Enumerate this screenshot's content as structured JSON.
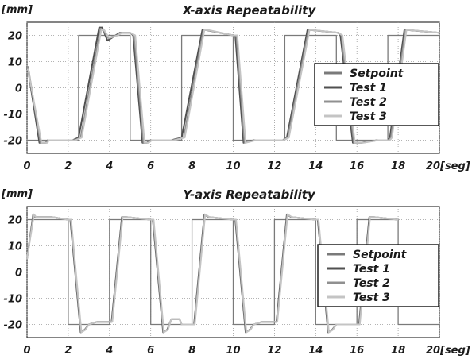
{
  "chart_data": [
    {
      "type": "line",
      "title": "X-axis Repeatability",
      "ylabel": "[mm]",
      "xlabel": "[seg]",
      "xlim": [
        0,
        20
      ],
      "ylim": [
        -25,
        25
      ],
      "xticks": [
        0,
        2,
        4,
        6,
        8,
        10,
        12,
        14,
        16,
        18,
        20
      ],
      "xtick_labels": [
        "0",
        "2",
        "4",
        "6",
        "8",
        "10",
        "12",
        "14",
        "16",
        "18",
        "20"
      ],
      "xunit_label": "[seg]",
      "yticks": [
        20,
        10,
        0,
        -10,
        -20
      ],
      "grid": true,
      "legend_position": "center-right",
      "series": [
        {
          "name": "Setpoint",
          "color": "#7a7a7a",
          "x": [
            0,
            2.5,
            2.5,
            5,
            5,
            7.5,
            7.5,
            10,
            10,
            12.5,
            12.5,
            15,
            15,
            17.5,
            17.5,
            20
          ],
          "y": [
            -20,
            -20,
            20,
            20,
            -20,
            -20,
            20,
            20,
            -20,
            -20,
            20,
            20,
            -20,
            -20,
            20,
            20
          ]
        },
        {
          "name": "Test 1",
          "color": "#505050",
          "x": [
            0,
            0.05,
            0.6,
            0.9,
            1.0,
            2.2,
            2.5,
            3.5,
            3.65,
            3.8,
            3.9,
            4.3,
            4.5,
            5.0,
            5.15,
            5.6,
            5.8,
            6.0,
            7.0,
            7.5,
            8.5,
            8.7,
            10.0,
            10.1,
            10.5,
            11.0,
            12.4,
            12.6,
            13.6,
            13.8,
            15.1,
            15.2,
            15.8,
            16.2,
            17.0,
            17.5,
            17.6,
            18.3,
            18.5,
            20.0
          ],
          "y": [
            7,
            7,
            -21,
            -21,
            -20,
            -20,
            -19,
            23,
            23,
            20,
            18,
            20,
            21,
            21,
            20,
            -21,
            -21,
            -20,
            -20,
            -19,
            22,
            22,
            20,
            20,
            -21,
            -20,
            -20,
            -19,
            22,
            22,
            21,
            20,
            -21,
            -21,
            -20,
            -20,
            -19,
            22,
            22,
            21
          ]
        },
        {
          "name": "Test 2",
          "color": "#909090",
          "x": [
            0,
            0.05,
            0.65,
            0.95,
            1.0,
            2.3,
            2.6,
            3.55,
            3.7,
            3.85,
            3.95,
            4.35,
            4.55,
            5.0,
            5.2,
            5.65,
            5.85,
            6.0,
            7.1,
            7.6,
            8.55,
            8.75,
            10.0,
            10.15,
            10.55,
            11.05,
            12.4,
            12.65,
            13.65,
            13.85,
            15.1,
            15.25,
            15.85,
            16.25,
            17.0,
            17.55,
            17.65,
            18.35,
            18.55,
            20.0
          ],
          "y": [
            8,
            8,
            -21,
            -21,
            -20,
            -20,
            -19,
            22,
            22,
            20,
            19,
            20,
            21,
            21,
            20,
            -21,
            -21,
            -20,
            -20,
            -19,
            22,
            22,
            20,
            20,
            -21,
            -20,
            -20,
            -19,
            22,
            22,
            21,
            20,
            -21,
            -21,
            -20,
            -20,
            -19,
            22,
            22,
            21
          ]
        },
        {
          "name": "Test 3",
          "color": "#c4c4c4",
          "x": [
            0,
            0.05,
            0.7,
            1.0,
            1.05,
            2.35,
            2.65,
            3.6,
            3.75,
            3.9,
            4.0,
            4.4,
            4.6,
            5.0,
            5.25,
            5.7,
            5.9,
            6.05,
            7.15,
            7.65,
            8.6,
            8.8,
            10.0,
            10.2,
            10.6,
            11.1,
            12.45,
            12.7,
            13.7,
            13.9,
            15.1,
            15.3,
            15.9,
            16.3,
            17.05,
            17.6,
            17.7,
            18.4,
            18.6,
            20.0
          ],
          "y": [
            7,
            7,
            -21,
            -21,
            -20,
            -20,
            -19,
            22,
            22,
            20,
            19,
            20,
            21,
            21,
            20,
            -21,
            -21,
            -20,
            -20,
            -19,
            22,
            22,
            20,
            20,
            -21,
            -20,
            -20,
            -19,
            22,
            22,
            21,
            20,
            -21,
            -21,
            -20,
            -20,
            -19,
            22,
            22,
            21
          ]
        }
      ]
    },
    {
      "type": "line",
      "title": "Y-axis Repeatability",
      "ylabel": "[mm]",
      "xlabel": "[seg]",
      "xlim": [
        0,
        20
      ],
      "ylim": [
        -25,
        25
      ],
      "xticks": [
        0,
        2,
        4,
        6,
        8,
        10,
        12,
        14,
        16,
        18,
        20
      ],
      "xtick_labels": [
        "0",
        "2",
        "4",
        "6",
        "8",
        "10",
        "12",
        "14",
        "16",
        "18",
        "20"
      ],
      "xunit_label": "[seg]",
      "yticks": [
        20,
        10,
        0,
        -10,
        -20
      ],
      "grid": true,
      "legend_position": "center-right",
      "series": [
        {
          "name": "Setpoint",
          "color": "#7a7a7a",
          "x": [
            0,
            2,
            2,
            4,
            4,
            6,
            6,
            8,
            8,
            10,
            10,
            12,
            12,
            14,
            14,
            16,
            16,
            18,
            18,
            20
          ],
          "y": [
            20,
            20,
            -20,
            -20,
            20,
            20,
            -20,
            -20,
            20,
            20,
            -20,
            -20,
            20,
            20,
            -20,
            -20,
            20,
            20,
            -20,
            -20
          ]
        },
        {
          "name": "Test 1",
          "color": "#505050",
          "x": [
            0,
            0.3,
            0.4,
            1.2,
            2.0,
            2.1,
            2.6,
            2.8,
            3.0,
            3.4,
            3.5,
            4.0,
            4.1,
            4.6,
            4.8,
            6.0,
            6.1,
            6.6,
            6.8,
            7.0,
            7.4,
            7.5,
            8.0,
            8.1,
            8.6,
            8.8,
            10.0,
            10.1,
            10.6,
            10.8,
            11.0,
            11.4,
            11.5,
            12.0,
            12.1,
            12.6,
            12.8,
            14.0,
            14.1,
            14.6,
            14.8,
            15.0,
            15.4,
            15.5,
            16.0,
            16.1,
            16.6,
            16.8,
            18.0
          ],
          "y": [
            5,
            22,
            21,
            21,
            20,
            20,
            -23,
            -22,
            -20,
            -19,
            -19,
            -19,
            -19,
            21,
            21,
            20,
            20,
            -23,
            -22,
            -18,
            -18,
            -20,
            -20,
            -20,
            22,
            21,
            20,
            20,
            -23,
            -22,
            -20,
            -19,
            -19,
            -19,
            -19,
            22,
            21,
            20,
            20,
            -23,
            -22,
            -20,
            -20,
            -20,
            -20,
            -20,
            21,
            21,
            20
          ]
        },
        {
          "name": "Test 2",
          "color": "#909090",
          "x": [
            0,
            0.32,
            0.42,
            1.2,
            2.0,
            2.12,
            2.62,
            2.82,
            3.0,
            3.4,
            3.5,
            4.0,
            4.12,
            4.62,
            4.82,
            6.0,
            6.12,
            6.62,
            6.82,
            7.0,
            7.4,
            7.5,
            8.0,
            8.12,
            8.62,
            8.82,
            10.0,
            10.12,
            10.62,
            10.82,
            11.0,
            11.4,
            11.5,
            12.0,
            12.12,
            12.62,
            12.82,
            14.0,
            14.12,
            14.62,
            14.82,
            15.0,
            15.4,
            15.5,
            16.0,
            16.12,
            16.62,
            16.82,
            18.0
          ],
          "y": [
            5,
            22,
            21,
            21,
            20,
            20,
            -23,
            -22,
            -20,
            -19,
            -19,
            -19,
            -19,
            21,
            21,
            20,
            20,
            -23,
            -22,
            -18,
            -18,
            -20,
            -20,
            -20,
            22,
            21,
            20,
            20,
            -23,
            -22,
            -20,
            -19,
            -19,
            -19,
            -19,
            22,
            21,
            20,
            20,
            -23,
            -22,
            -20,
            -20,
            -20,
            -20,
            -20,
            21,
            21,
            20
          ]
        },
        {
          "name": "Test 3",
          "color": "#c4c4c4",
          "x": [
            0,
            0.34,
            0.44,
            1.2,
            2.0,
            2.14,
            2.64,
            2.84,
            3.0,
            3.4,
            3.5,
            4.0,
            4.14,
            4.64,
            4.84,
            6.0,
            6.14,
            6.64,
            6.84,
            7.0,
            7.4,
            7.5,
            8.0,
            8.14,
            8.64,
            8.84,
            10.0,
            10.14,
            10.64,
            10.84,
            11.0,
            11.4,
            11.5,
            12.0,
            12.14,
            12.64,
            12.84,
            14.0,
            14.14,
            14.64,
            14.84,
            15.0,
            15.4,
            15.5,
            16.0,
            16.14,
            16.64,
            16.84,
            18.0
          ],
          "y": [
            5,
            22,
            21,
            21,
            20,
            20,
            -23,
            -22,
            -20,
            -19,
            -19,
            -19,
            -19,
            21,
            21,
            20,
            20,
            -23,
            -22,
            -18,
            -18,
            -20,
            -20,
            -20,
            22,
            21,
            20,
            20,
            -23,
            -22,
            -20,
            -19,
            -19,
            -19,
            -19,
            22,
            21,
            20,
            20,
            -23,
            -22,
            -20,
            -20,
            -20,
            -20,
            -20,
            21,
            21,
            20
          ]
        }
      ]
    }
  ]
}
